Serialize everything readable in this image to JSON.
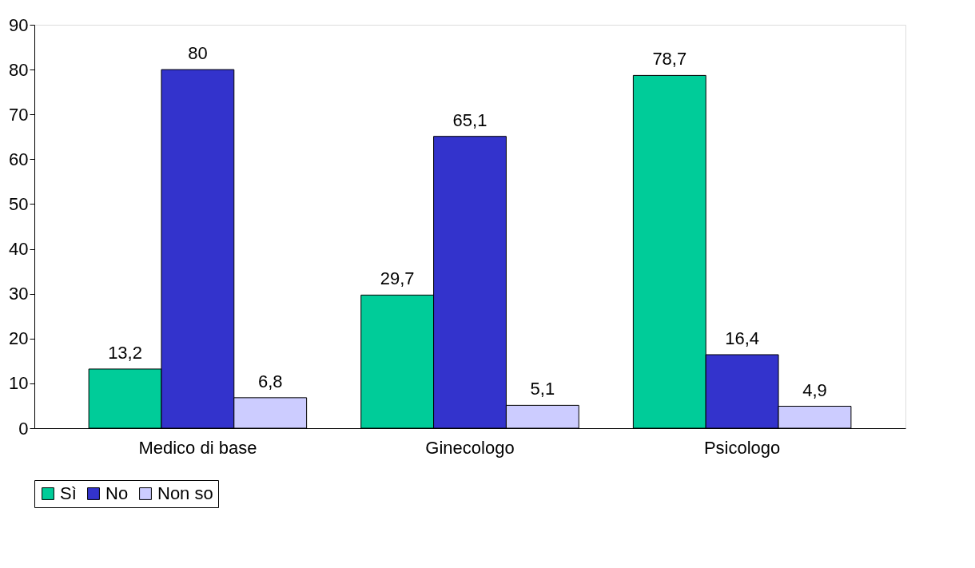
{
  "chart_data": {
    "type": "bar",
    "categories": [
      "Medico di base",
      "Ginecologo",
      "Psicologo"
    ],
    "series": [
      {
        "name": "Sì",
        "color": "#00cc99",
        "values": [
          13.2,
          29.7,
          78.7
        ],
        "value_labels": [
          "13,2",
          "29,7",
          "78,7"
        ]
      },
      {
        "name": "No",
        "color": "#3333cc",
        "values": [
          80,
          65.1,
          16.4
        ],
        "value_labels": [
          "80",
          "65,1",
          "16,4"
        ]
      },
      {
        "name": "Non so",
        "color": "#ccccff",
        "values": [
          6.8,
          5.1,
          4.9
        ],
        "value_labels": [
          "6,8",
          "5,1",
          "4,9"
        ]
      }
    ],
    "ylim": [
      0,
      90
    ],
    "yticks": [
      0,
      10,
      20,
      30,
      40,
      50,
      60,
      70,
      80,
      90
    ],
    "grid": false,
    "legend": "bottom"
  }
}
